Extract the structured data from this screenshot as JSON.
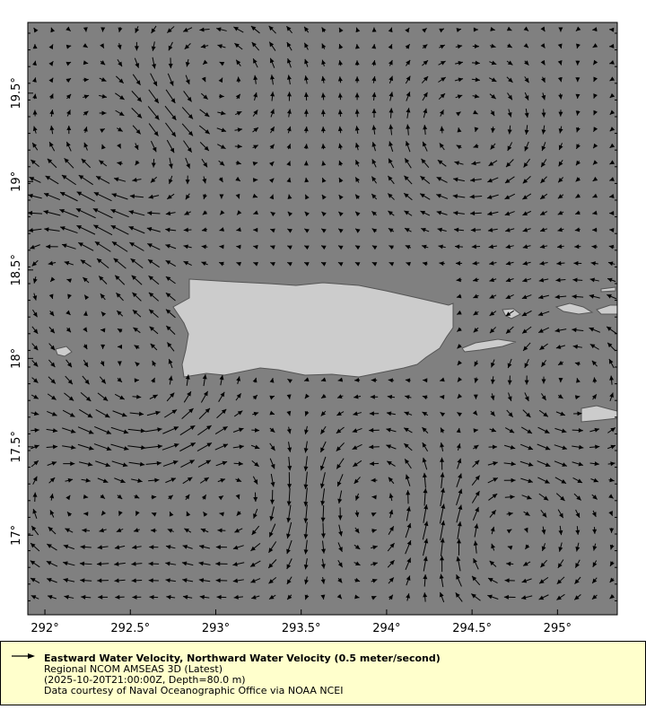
{
  "map": {
    "background_color": "#808080",
    "land_color": "#cccccc",
    "arrow_color": "#000000",
    "x_ticks": [
      "292°",
      "292.5°",
      "293°",
      "293.5°",
      "294°",
      "294.5°",
      "295°"
    ],
    "y_ticks": [
      "19.5°",
      "19°",
      "18.5°",
      "18°",
      "17.5°",
      "17°"
    ],
    "x_tick_values": [
      292,
      292.5,
      293,
      293.5,
      294,
      294.5,
      295
    ],
    "y_tick_values": [
      19.5,
      19,
      18.5,
      18,
      17.5,
      17
    ],
    "lon_range": [
      291.9,
      295.35
    ],
    "lat_range": [
      16.55,
      19.9
    ]
  },
  "legend": {
    "title": "Eastward Water Velocity, Northward Water Velocity (0.5 meter/second)",
    "dataset": "Regional NCOM AMSEAS 3D (Latest)",
    "time_depth": "(2025-10-20T21:00:00Z, Depth=80.0 m)",
    "credit": "Data courtesy of Naval Oceanographic Office via NOAA NCEI",
    "background_color": "#ffffcc"
  }
}
